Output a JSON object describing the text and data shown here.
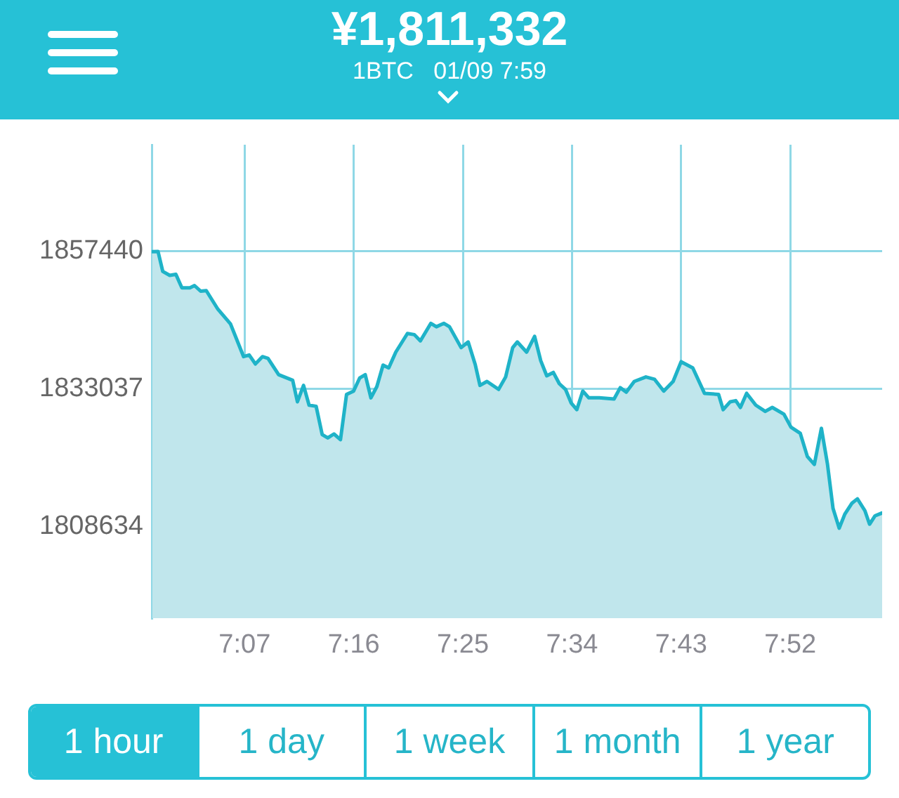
{
  "chart_data": {
    "type": "area",
    "title": "¥1,811,332",
    "subtitle": "1BTC   01/09 7:59",
    "annotations": [
      "1 hour",
      "1 day",
      "1 week",
      "1 month",
      "1 year"
    ],
    "x": [
      6.99,
      6.9977,
      7.0042,
      7.0138,
      7.0222,
      7.0305,
      7.0415,
      7.0478,
      7.0563,
      7.064,
      7.08,
      7.0973,
      7.1153,
      7.123,
      7.1315,
      7.1412,
      7.1488,
      7.1635,
      7.1828,
      7.1893,
      7.1977,
      7.2053,
      7.215,
      7.2233,
      7.231,
      7.2395,
      7.2485,
      7.2568,
      7.2665,
      7.2748,
      7.2825,
      7.2903,
      7.2985,
      7.307,
      7.3148,
      7.3245,
      7.3405,
      7.35,
      7.3583,
      7.3727,
      7.3803,
      7.3907,
      7.3983,
      7.4143,
      7.424,
      7.4337,
      7.4402,
      7.4498,
      7.4658,
      7.4755,
      7.4852,
      7.4915,
      7.5043,
      7.5153,
      7.5237,
      7.532,
      7.541,
      7.5493,
      7.5578,
      7.5655,
      7.5733,
      7.5815,
      7.5898,
      7.6042,
      7.6245,
      7.633,
      7.6413,
      7.6523,
      7.6683,
      7.68,
      7.6928,
      7.7057,
      7.7167,
      7.7327,
      7.7488,
      7.7682,
      7.7745,
      7.7842,
      7.7918,
      7.7982,
      7.8067,
      7.8193,
      7.8323,
      7.842,
      7.858,
      7.8677,
      7.8805,
      7.8902,
      7.8998,
      7.9095,
      7.9178,
      7.9255,
      7.934,
      7.9417,
      7.9513,
      7.959,
      7.9693,
      7.9757,
      7.9833,
      7.993
    ],
    "series": [
      {
        "color": "#1fb3c8",
        "values": [
          1857400,
          1857440,
          1853900,
          1853200,
          1853400,
          1851000,
          1851000,
          1851400,
          1850400,
          1850500,
          1847200,
          1844600,
          1838800,
          1839100,
          1837500,
          1838800,
          1838500,
          1835600,
          1834600,
          1830800,
          1833700,
          1830200,
          1830000,
          1825000,
          1824400,
          1825100,
          1824100,
          1832100,
          1832700,
          1835000,
          1835600,
          1831500,
          1833500,
          1837300,
          1836800,
          1839600,
          1842900,
          1842700,
          1841600,
          1844700,
          1844100,
          1844700,
          1844100,
          1840400,
          1841400,
          1837400,
          1833700,
          1834400,
          1833000,
          1835200,
          1840400,
          1841400,
          1839600,
          1842400,
          1838100,
          1835400,
          1836000,
          1834000,
          1833000,
          1830600,
          1829400,
          1832700,
          1831500,
          1831500,
          1831300,
          1833300,
          1832500,
          1834400,
          1835200,
          1834800,
          1832700,
          1834400,
          1837900,
          1836800,
          1832300,
          1832100,
          1829400,
          1830800,
          1831000,
          1829800,
          1832300,
          1830200,
          1829100,
          1829800,
          1828600,
          1826300,
          1825200,
          1821100,
          1819700,
          1826100,
          1819800,
          1811900,
          1808400,
          1810900,
          1812800,
          1813600,
          1811500,
          1809100,
          1810600,
          1811100
        ]
      }
    ],
    "xlim": [
      6.989,
      7.993
    ],
    "xticks": [
      {
        "value": 7.1167,
        "label": "7:07"
      },
      {
        "value": 7.2667,
        "label": "7:16"
      },
      {
        "value": 7.4167,
        "label": "7:25"
      },
      {
        "value": 7.5667,
        "label": "7:34"
      },
      {
        "value": 7.7167,
        "label": "7:43"
      },
      {
        "value": 7.8667,
        "label": "7:52"
      }
    ],
    "ylim": [
      1792450,
      1876360
    ],
    "yticks": [
      1808634,
      1833037,
      1857440
    ],
    "grid": true,
    "legend": false,
    "marker": "none",
    "line_style": "solid"
  }
}
